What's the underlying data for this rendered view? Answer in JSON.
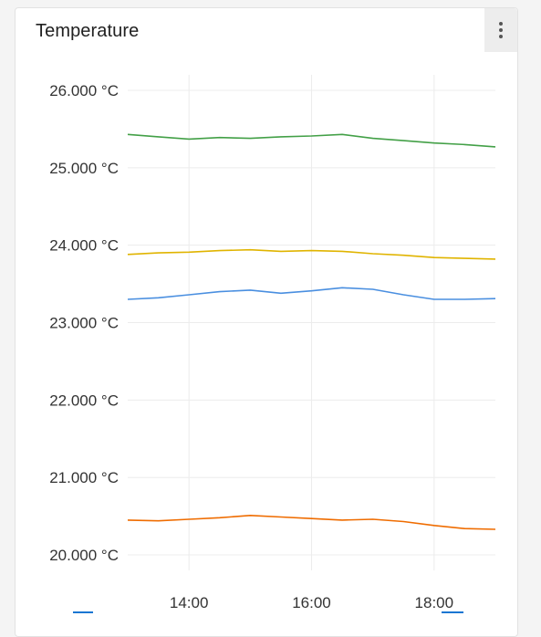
{
  "card": {
    "title": "Temperature"
  },
  "colors": {
    "grid": "#ececec",
    "axis_text": "#333333"
  },
  "chart_data": {
    "type": "line",
    "title": "Temperature",
    "xlabel": "",
    "ylabel": "",
    "ylim": [
      19.8,
      26.2
    ],
    "xlim": [
      "13:00",
      "19:00"
    ],
    "y_ticks": [
      "26.000 °C",
      "25.000 °C",
      "24.000 °C",
      "23.000 °C",
      "22.000 °C",
      "21.000 °C",
      "20.000 °C"
    ],
    "x_ticks": [
      "14:00",
      "16:00",
      "18:00"
    ],
    "grid": true,
    "series": [
      {
        "color": "#43a047",
        "x": [
          "13:00",
          "13:30",
          "14:00",
          "14:30",
          "15:00",
          "15:30",
          "16:00",
          "16:30",
          "17:00",
          "17:30",
          "18:00",
          "18:30",
          "19:00"
        ],
        "values": [
          25.43,
          25.4,
          25.37,
          25.39,
          25.38,
          25.4,
          25.41,
          25.43,
          25.38,
          25.35,
          25.32,
          25.3,
          25.27
        ]
      },
      {
        "color": "#e0b400",
        "x": [
          "13:00",
          "13:30",
          "14:00",
          "14:30",
          "15:00",
          "15:30",
          "16:00",
          "16:30",
          "17:00",
          "17:30",
          "18:00",
          "18:30",
          "19:00"
        ],
        "values": [
          23.88,
          23.9,
          23.91,
          23.93,
          23.94,
          23.92,
          23.93,
          23.92,
          23.89,
          23.87,
          23.84,
          23.83,
          23.82
        ]
      },
      {
        "color": "#4a8fe0",
        "x": [
          "13:00",
          "13:30",
          "14:00",
          "14:30",
          "15:00",
          "15:30",
          "16:00",
          "16:30",
          "17:00",
          "17:30",
          "18:00",
          "18:30",
          "19:00"
        ],
        "values": [
          23.3,
          23.32,
          23.36,
          23.4,
          23.42,
          23.38,
          23.41,
          23.45,
          23.43,
          23.36,
          23.3,
          23.3,
          23.31
        ]
      },
      {
        "color": "#ef6c00",
        "x": [
          "13:00",
          "13:30",
          "14:00",
          "14:30",
          "15:00",
          "15:30",
          "16:00",
          "16:30",
          "17:00",
          "17:30",
          "18:00",
          "18:30",
          "19:00"
        ],
        "values": [
          20.45,
          20.44,
          20.46,
          20.48,
          20.51,
          20.49,
          20.47,
          20.45,
          20.46,
          20.43,
          20.38,
          20.34,
          20.33
        ]
      }
    ]
  }
}
